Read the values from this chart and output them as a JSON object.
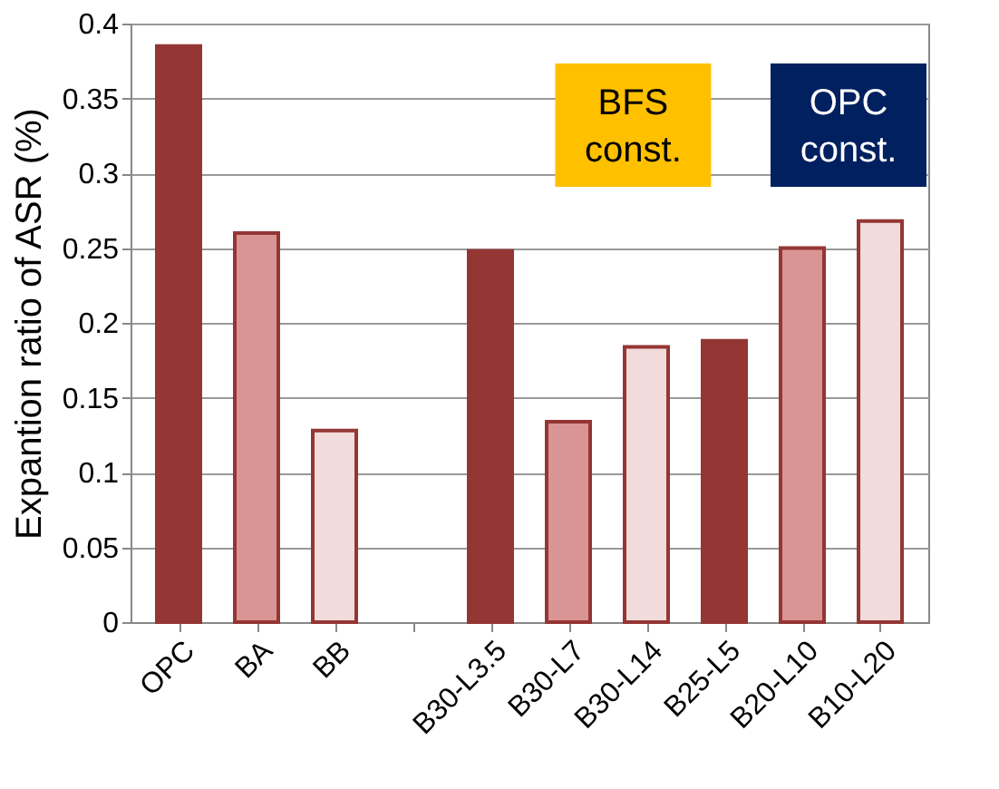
{
  "chart_data": {
    "type": "bar",
    "ylabel": "Expantion ratio of ASR (%)",
    "categories": [
      "OPC",
      "BA",
      "BB",
      null,
      "B30-L3.5",
      "B30-L7",
      "B30-L14",
      "B25-L5",
      "B20-L10",
      "B10-L20"
    ],
    "values": [
      0.385,
      0.26,
      0.128,
      null,
      0.248,
      0.134,
      0.184,
      0.188,
      0.25,
      0.268
    ],
    "colors": [
      "#943634",
      "#d99594",
      "#f2dcdb",
      null,
      "#943634",
      "#d99594",
      "#f2dcdb",
      "#943634",
      "#d99594",
      "#f2dcdb"
    ],
    "ylim": [
      0,
      0.4
    ],
    "yticks": [
      0,
      0.05,
      0.1,
      0.15,
      0.2,
      0.25,
      0.3,
      0.35,
      0.4
    ],
    "grid": "y",
    "annotations": [
      "BFS\nconst.",
      "OPC\nconst."
    ]
  }
}
